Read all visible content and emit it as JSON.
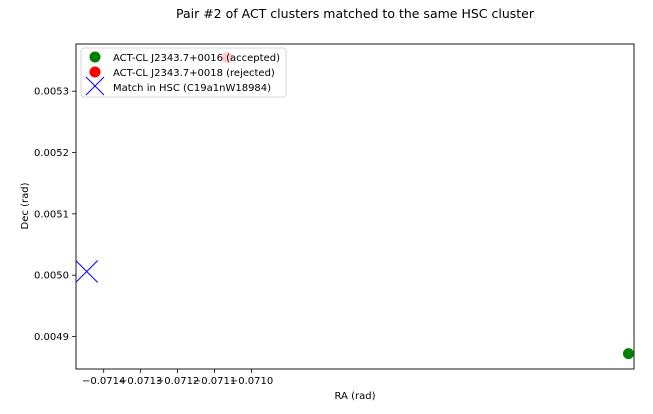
{
  "chart_data": {
    "type": "scatter",
    "title": "Pair #2 of ACT clusters matched to the same HSC cluster",
    "xlabel": "RA (rad)",
    "ylabel": "Dec (rad)",
    "xlim": [
      -0.071475,
      -0.069965
    ],
    "ylim": [
      0.004847,
      0.005377
    ],
    "xticks": [
      -0.0714,
      -0.0713,
      -0.0712,
      -0.0711,
      -0.071
    ],
    "xtick_labels": [
      "−0.0714",
      "−0.0713",
      "−0.0712",
      "−0.0711",
      "−0.0710"
    ],
    "yticks": [
      0.0049,
      0.005,
      0.0051,
      0.0052,
      0.0053
    ],
    "ytick_labels": [
      "0.0049",
      "0.0050",
      "0.0051",
      "0.0052",
      "0.0053"
    ],
    "grid": false,
    "legend_position": "upper-left",
    "series": [
      {
        "name": "ACT-CL J2343.7+0016 (accepted)",
        "marker": "circle",
        "color": "#008000",
        "points": [
          [
            -0.06998,
            0.004872
          ]
        ]
      },
      {
        "name": "ACT-CL J2343.7+0018 (rejected)",
        "marker": "circle",
        "color": "#ff0000",
        "points": [
          [
            -0.071066,
            0.005355
          ]
        ]
      },
      {
        "name": "Match in HSC (C19a1nW18984)",
        "marker": "x",
        "color": "#0000ff",
        "points": [
          [
            -0.071446,
            0.005006
          ]
        ]
      }
    ]
  }
}
